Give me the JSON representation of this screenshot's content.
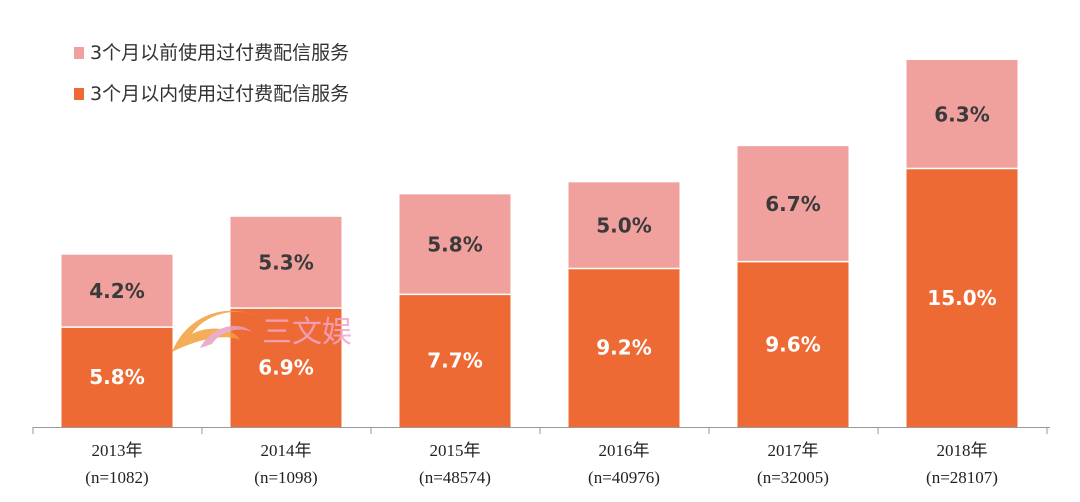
{
  "chart_data": {
    "type": "bar",
    "stacked": true,
    "categories": [
      "2013年",
      "2014年",
      "2015年",
      "2016年",
      "2017年",
      "2018年"
    ],
    "sample_sizes": [
      "(n=1082)",
      "(n=1098)",
      "(n=48574)",
      "(n=40976)",
      "(n=32005)",
      "(n=28107)"
    ],
    "series": [
      {
        "name": "3个月以内使用过付费配信服务",
        "values": [
          5.8,
          6.9,
          7.7,
          9.2,
          9.6,
          15.0
        ],
        "labels": [
          "5.8%",
          "6.9%",
          "7.7%",
          "9.2%",
          "9.6%",
          "15.0%"
        ],
        "color": "#ee6a35",
        "label_color": "#ffffff"
      },
      {
        "name": "3个月以前使用过付费配信服务",
        "values": [
          4.2,
          5.3,
          5.8,
          5.0,
          6.7,
          6.3
        ],
        "labels": [
          "4.2%",
          "5.3%",
          "5.8%",
          "5.0%",
          "6.7%",
          "6.3%"
        ],
        "color": "#f0a19e",
        "label_color": "#3a3a3a"
      }
    ],
    "legend_order": [
      1,
      0
    ],
    "legend_position": "top-left",
    "ylim": [
      0,
      21.3
    ],
    "title": "",
    "xlabel": "",
    "ylabel": ""
  },
  "watermark": {
    "text": "三文娱"
  }
}
